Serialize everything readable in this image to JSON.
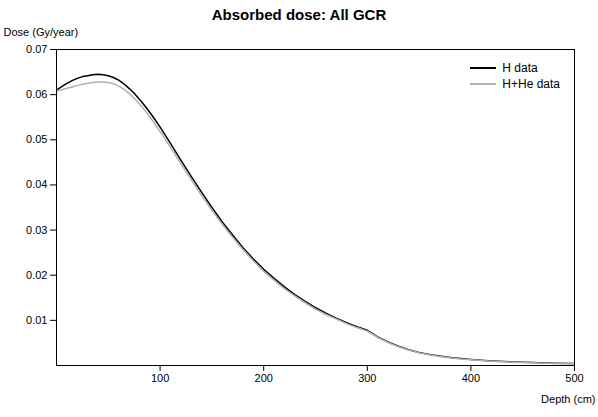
{
  "chart_data": {
    "type": "line",
    "title": "Absorbed dose: All GCR",
    "xlabel": "Depth (cm)",
    "ylabel": "Dose (Gy/year)",
    "x": [
      0,
      5,
      10,
      15,
      20,
      25,
      30,
      35,
      40,
      45,
      50,
      55,
      60,
      65,
      70,
      75,
      80,
      85,
      90,
      95,
      100,
      110,
      120,
      130,
      140,
      150,
      160,
      170,
      180,
      190,
      200,
      210,
      220,
      230,
      240,
      250,
      260,
      270,
      280,
      290,
      300,
      310,
      320,
      330,
      340,
      350,
      360,
      370,
      380,
      390,
      400,
      420,
      440,
      460,
      480,
      500
    ],
    "series": [
      {
        "name": "H data",
        "color": "#000000",
        "values": [
          0.061,
          0.0618,
          0.0625,
          0.0631,
          0.0636,
          0.064,
          0.0642,
          0.0644,
          0.0645,
          0.0644,
          0.0642,
          0.0638,
          0.0632,
          0.0624,
          0.0614,
          0.0603,
          0.059,
          0.0576,
          0.0561,
          0.0545,
          0.0528,
          0.0492,
          0.0455,
          0.0419,
          0.0384,
          0.035,
          0.0318,
          0.0289,
          0.0261,
          0.0236,
          0.0213,
          0.0193,
          0.0174,
          0.0157,
          0.0142,
          0.0128,
          0.0116,
          0.0105,
          0.0095,
          0.0086,
          0.0078,
          0.00635,
          0.0052,
          0.00425,
          0.0035,
          0.0029,
          0.00245,
          0.00208,
          0.00178,
          0.00153,
          0.00133,
          0.00102,
          0.0008,
          0.00064,
          0.00052,
          0.00042
        ]
      },
      {
        "name": "H+He data",
        "color": "#b0b0b0",
        "values": [
          0.0608,
          0.0611,
          0.0614,
          0.0617,
          0.062,
          0.0623,
          0.0625,
          0.0627,
          0.0628,
          0.0628,
          0.0627,
          0.0624,
          0.0619,
          0.0612,
          0.0603,
          0.0592,
          0.058,
          0.0566,
          0.0551,
          0.0535,
          0.0518,
          0.0483,
          0.0447,
          0.0412,
          0.0377,
          0.0344,
          0.0313,
          0.0284,
          0.0257,
          0.0232,
          0.0209,
          0.0189,
          0.017,
          0.0154,
          0.0139,
          0.0125,
          0.0113,
          0.0103,
          0.00928,
          0.0084,
          0.00762,
          0.00622,
          0.0051,
          0.00418,
          0.00345,
          0.00285,
          0.00238,
          0.002,
          0.0017,
          0.00146,
          0.00126,
          0.00095,
          0.00074,
          0.00059,
          0.00047,
          0.00038
        ]
      }
    ],
    "xlim": [
      0,
      500
    ],
    "ylim": [
      0,
      0.07
    ],
    "xticks": [
      100,
      200,
      300,
      400,
      500
    ],
    "yticks": [
      0.01,
      0.02,
      0.03,
      0.04,
      0.05,
      0.06,
      0.07
    ],
    "grid": false,
    "legend": "upper right"
  }
}
